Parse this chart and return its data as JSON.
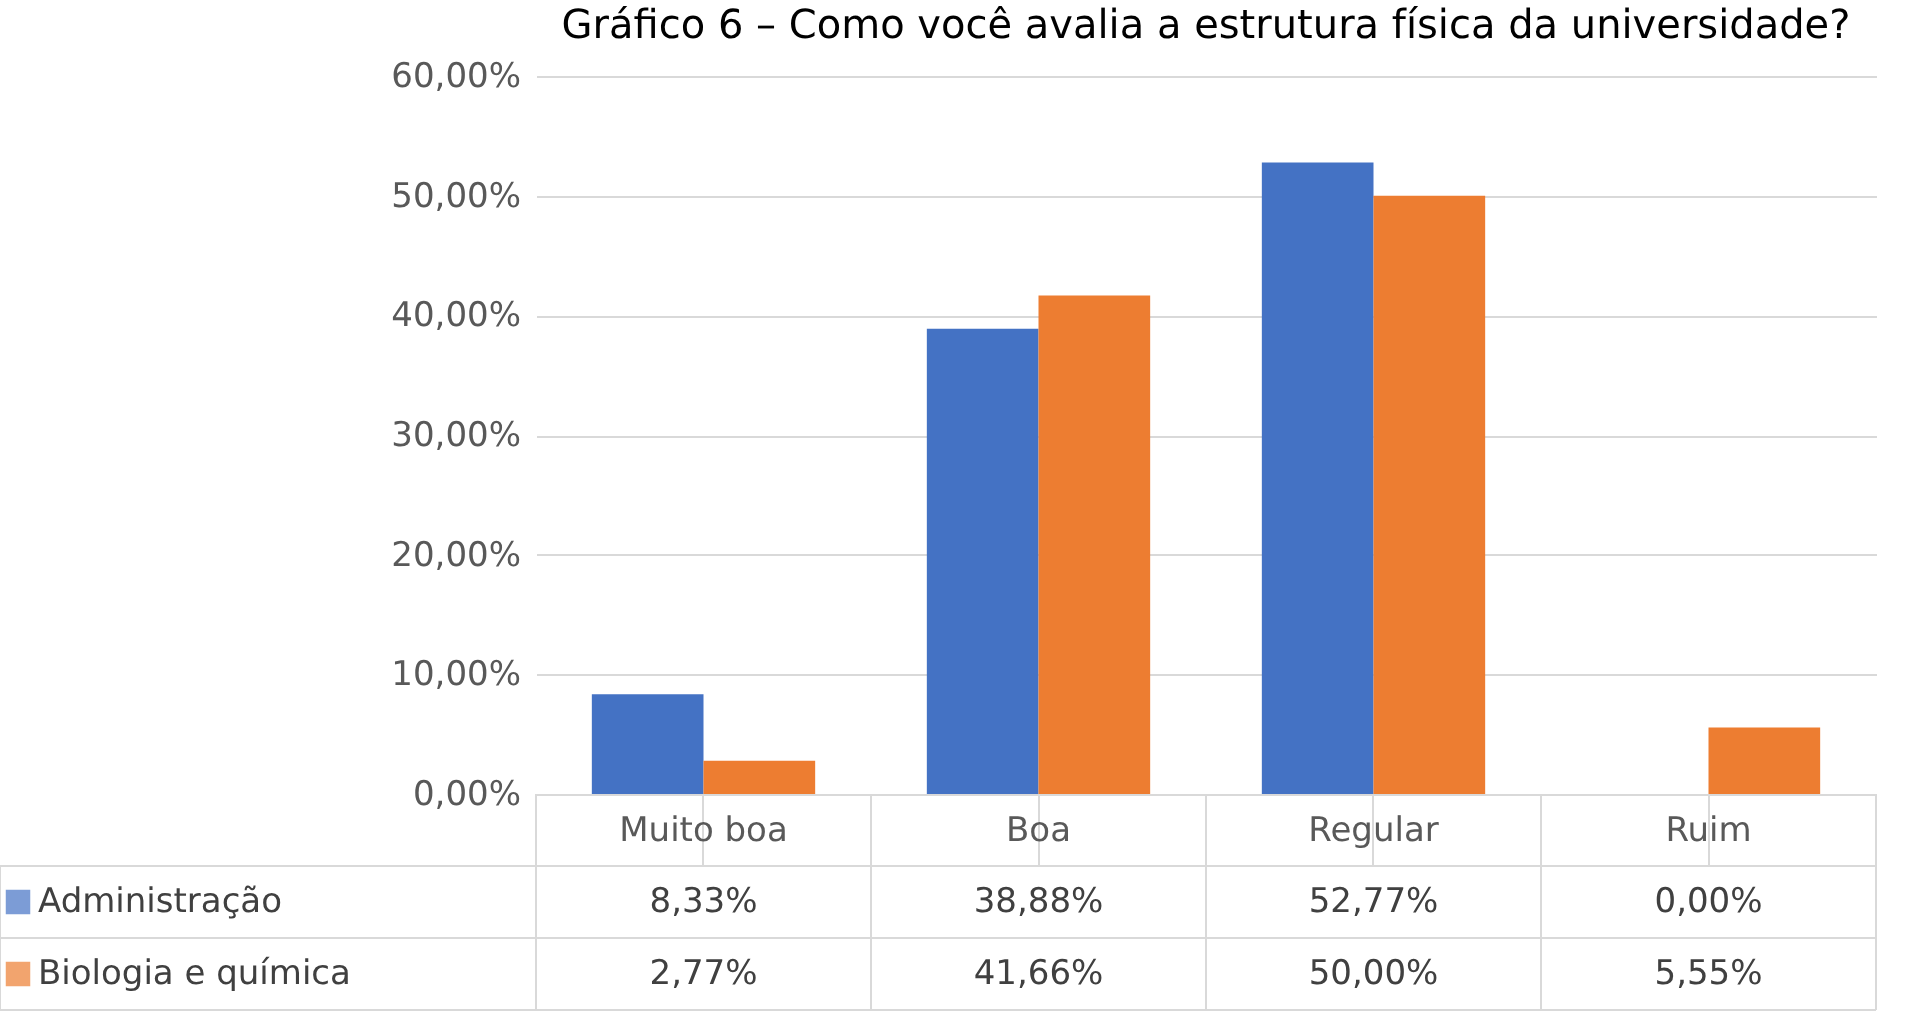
{
  "chart_data": {
    "type": "bar",
    "title": "Gráfico 6 – Como você avalia a estrutura física da universidade?",
    "categories": [
      "Muito boa",
      "Boa",
      "Regular",
      "Ruim"
    ],
    "series": [
      {
        "name": "Administração",
        "color": "#4472c4",
        "values": [
          8.33,
          38.88,
          52.77,
          0.0
        ],
        "value_labels": [
          "8,33%",
          "38,88%",
          "52,77%",
          "0,00%"
        ]
      },
      {
        "name": "Biologia e química",
        "color": "#ed7d31",
        "values": [
          2.77,
          41.66,
          50.0,
          5.55
        ],
        "value_labels": [
          "2,77%",
          "41,66%",
          "50,00%",
          "5,55%"
        ]
      }
    ],
    "ylim": [
      0,
      60
    ],
    "yticks": [
      {
        "value": 0,
        "label": "0,00%"
      },
      {
        "value": 10,
        "label": "10,00%"
      },
      {
        "value": 20,
        "label": "20,00%"
      },
      {
        "value": 30,
        "label": "30,00%"
      },
      {
        "value": 40,
        "label": "40,00%"
      },
      {
        "value": 50,
        "label": "50,00%"
      },
      {
        "value": 60,
        "label": "60,00%"
      }
    ],
    "grid": "y",
    "legend": "bottom"
  }
}
